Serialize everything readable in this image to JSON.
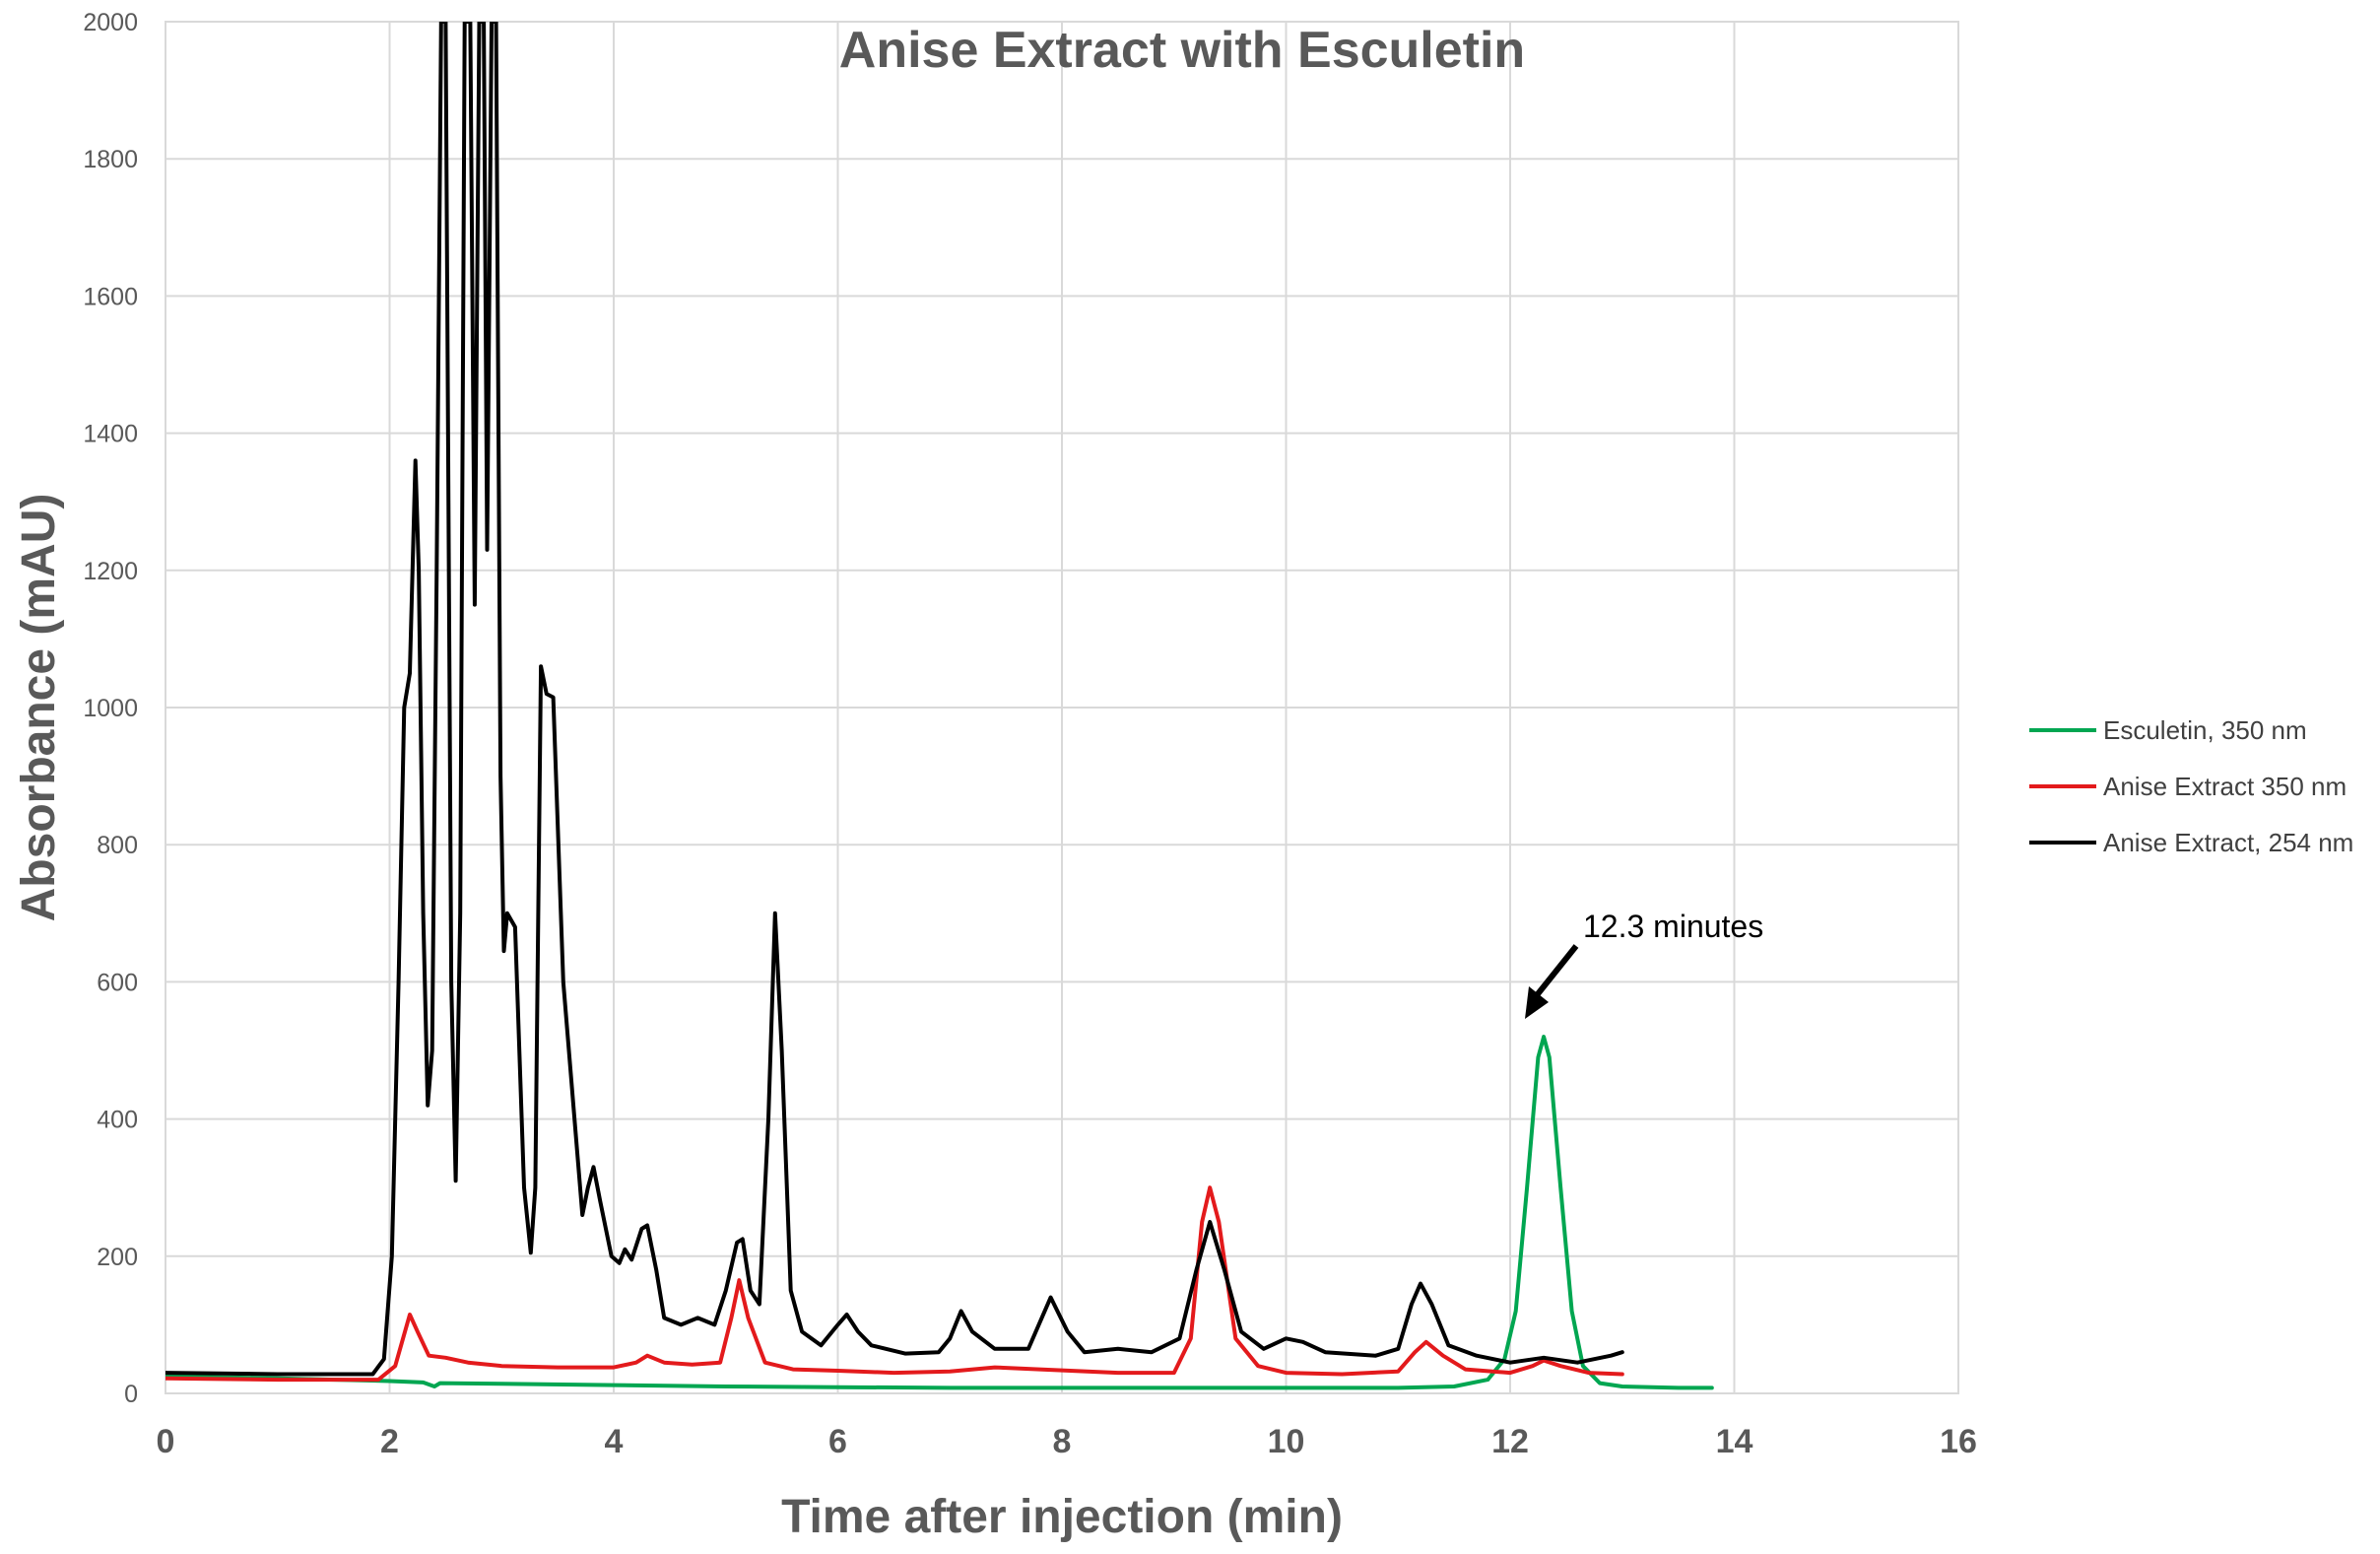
{
  "chart_data": {
    "type": "line",
    "title": "Anise Extract with Esculetin",
    "xlabel": "Time after injection (min)",
    "ylabel": "Absorbance (mAU)",
    "xlim": [
      0,
      16
    ],
    "ylim": [
      0,
      2000
    ],
    "xticks": [
      "0",
      "2",
      "4",
      "6",
      "8",
      "10",
      "12",
      "14",
      "16"
    ],
    "yticks": [
      "0",
      "200",
      "400",
      "600",
      "800",
      "1000",
      "1200",
      "1400",
      "1600",
      "1800",
      "2000"
    ],
    "grid": true,
    "legend_position": "right",
    "series": [
      {
        "name": "Esculetin, 350 nm",
        "color": "#00a651",
        "points": [
          [
            0,
            25
          ],
          [
            1,
            22
          ],
          [
            2,
            18
          ],
          [
            2.3,
            16
          ],
          [
            2.4,
            10
          ],
          [
            2.45,
            15
          ],
          [
            3,
            14
          ],
          [
            4,
            12
          ],
          [
            5,
            10
          ],
          [
            6,
            9
          ],
          [
            7,
            8
          ],
          [
            8,
            8
          ],
          [
            9,
            8
          ],
          [
            10,
            8
          ],
          [
            11,
            8
          ],
          [
            11.5,
            10
          ],
          [
            11.8,
            20
          ],
          [
            11.95,
            50
          ],
          [
            12.05,
            120
          ],
          [
            12.15,
            300
          ],
          [
            12.25,
            490
          ],
          [
            12.3,
            520
          ],
          [
            12.35,
            490
          ],
          [
            12.45,
            300
          ],
          [
            12.55,
            120
          ],
          [
            12.65,
            40
          ],
          [
            12.8,
            15
          ],
          [
            13,
            10
          ],
          [
            13.5,
            8
          ],
          [
            13.8,
            8
          ]
        ]
      },
      {
        "name": "Anise Extract 350 nm",
        "color": "#e31a1c",
        "points": [
          [
            0,
            22
          ],
          [
            1,
            20
          ],
          [
            1.9,
            20
          ],
          [
            2.05,
            40
          ],
          [
            2.12,
            80
          ],
          [
            2.18,
            115
          ],
          [
            2.25,
            90
          ],
          [
            2.35,
            55
          ],
          [
            2.5,
            52
          ],
          [
            2.7,
            45
          ],
          [
            3,
            40
          ],
          [
            3.5,
            38
          ],
          [
            4,
            38
          ],
          [
            4.2,
            45
          ],
          [
            4.3,
            55
          ],
          [
            4.45,
            45
          ],
          [
            4.7,
            42
          ],
          [
            4.95,
            45
          ],
          [
            5.05,
            110
          ],
          [
            5.12,
            165
          ],
          [
            5.2,
            110
          ],
          [
            5.35,
            45
          ],
          [
            5.6,
            35
          ],
          [
            6,
            33
          ],
          [
            6.5,
            30
          ],
          [
            7,
            32
          ],
          [
            7.4,
            38
          ],
          [
            7.8,
            35
          ],
          [
            8.5,
            30
          ],
          [
            9,
            30
          ],
          [
            9.15,
            80
          ],
          [
            9.25,
            250
          ],
          [
            9.32,
            300
          ],
          [
            9.4,
            250
          ],
          [
            9.55,
            80
          ],
          [
            9.75,
            40
          ],
          [
            10,
            30
          ],
          [
            10.5,
            28
          ],
          [
            11,
            32
          ],
          [
            11.15,
            60
          ],
          [
            11.25,
            75
          ],
          [
            11.4,
            55
          ],
          [
            11.6,
            35
          ],
          [
            12,
            30
          ],
          [
            12.2,
            40
          ],
          [
            12.3,
            48
          ],
          [
            12.45,
            40
          ],
          [
            12.7,
            30
          ],
          [
            13,
            28
          ]
        ]
      },
      {
        "name": "Anise Extract,  254 nm",
        "color": "#000000",
        "points": [
          [
            0,
            30
          ],
          [
            1,
            28
          ],
          [
            1.85,
            28
          ],
          [
            1.95,
            50
          ],
          [
            2.02,
            200
          ],
          [
            2.08,
            600
          ],
          [
            2.13,
            1000
          ],
          [
            2.18,
            1050
          ],
          [
            2.23,
            1360
          ],
          [
            2.26,
            1200
          ],
          [
            2.3,
            700
          ],
          [
            2.34,
            420
          ],
          [
            2.38,
            500
          ],
          [
            2.42,
            1200
          ],
          [
            2.46,
            2000
          ],
          [
            2.5,
            2000
          ],
          [
            2.55,
            600
          ],
          [
            2.59,
            310
          ],
          [
            2.63,
            700
          ],
          [
            2.67,
            2000
          ],
          [
            2.72,
            2000
          ],
          [
            2.76,
            1150
          ],
          [
            2.8,
            2000
          ],
          [
            2.84,
            2000
          ],
          [
            2.87,
            1230
          ],
          [
            2.91,
            2000
          ],
          [
            2.95,
            2000
          ],
          [
            2.99,
            900
          ],
          [
            3.02,
            645
          ],
          [
            3.05,
            700
          ],
          [
            3.12,
            680
          ],
          [
            3.2,
            300
          ],
          [
            3.26,
            205
          ],
          [
            3.3,
            300
          ],
          [
            3.35,
            1060
          ],
          [
            3.4,
            1020
          ],
          [
            3.46,
            1015
          ],
          [
            3.55,
            600
          ],
          [
            3.65,
            400
          ],
          [
            3.72,
            260
          ],
          [
            3.77,
            300
          ],
          [
            3.82,
            330
          ],
          [
            3.88,
            280
          ],
          [
            3.98,
            200
          ],
          [
            4.05,
            190
          ],
          [
            4.1,
            210
          ],
          [
            4.16,
            195
          ],
          [
            4.25,
            240
          ],
          [
            4.3,
            245
          ],
          [
            4.38,
            180
          ],
          [
            4.45,
            110
          ],
          [
            4.6,
            100
          ],
          [
            4.75,
            110
          ],
          [
            4.9,
            100
          ],
          [
            5.0,
            150
          ],
          [
            5.1,
            220
          ],
          [
            5.15,
            225
          ],
          [
            5.22,
            150
          ],
          [
            5.3,
            130
          ],
          [
            5.38,
            400
          ],
          [
            5.44,
            700
          ],
          [
            5.5,
            500
          ],
          [
            5.58,
            150
          ],
          [
            5.68,
            90
          ],
          [
            5.85,
            70
          ],
          [
            6.0,
            100
          ],
          [
            6.08,
            115
          ],
          [
            6.18,
            90
          ],
          [
            6.3,
            70
          ],
          [
            6.6,
            58
          ],
          [
            6.9,
            60
          ],
          [
            7.0,
            80
          ],
          [
            7.1,
            120
          ],
          [
            7.2,
            90
          ],
          [
            7.4,
            65
          ],
          [
            7.7,
            65
          ],
          [
            7.9,
            140
          ],
          [
            8.05,
            90
          ],
          [
            8.2,
            60
          ],
          [
            8.5,
            65
          ],
          [
            8.8,
            60
          ],
          [
            9.05,
            80
          ],
          [
            9.2,
            180
          ],
          [
            9.32,
            250
          ],
          [
            9.45,
            180
          ],
          [
            9.6,
            90
          ],
          [
            9.8,
            65
          ],
          [
            10.0,
            80
          ],
          [
            10.15,
            75
          ],
          [
            10.35,
            60
          ],
          [
            10.8,
            55
          ],
          [
            11.0,
            65
          ],
          [
            11.12,
            130
          ],
          [
            11.2,
            160
          ],
          [
            11.3,
            130
          ],
          [
            11.45,
            70
          ],
          [
            11.7,
            55
          ],
          [
            12,
            45
          ],
          [
            12.3,
            52
          ],
          [
            12.6,
            45
          ],
          [
            12.9,
            55
          ],
          [
            13.0,
            60
          ]
        ]
      }
    ],
    "annotations": [
      {
        "text": "12.3 minutes",
        "x": 12.3,
        "y": 520
      }
    ]
  }
}
